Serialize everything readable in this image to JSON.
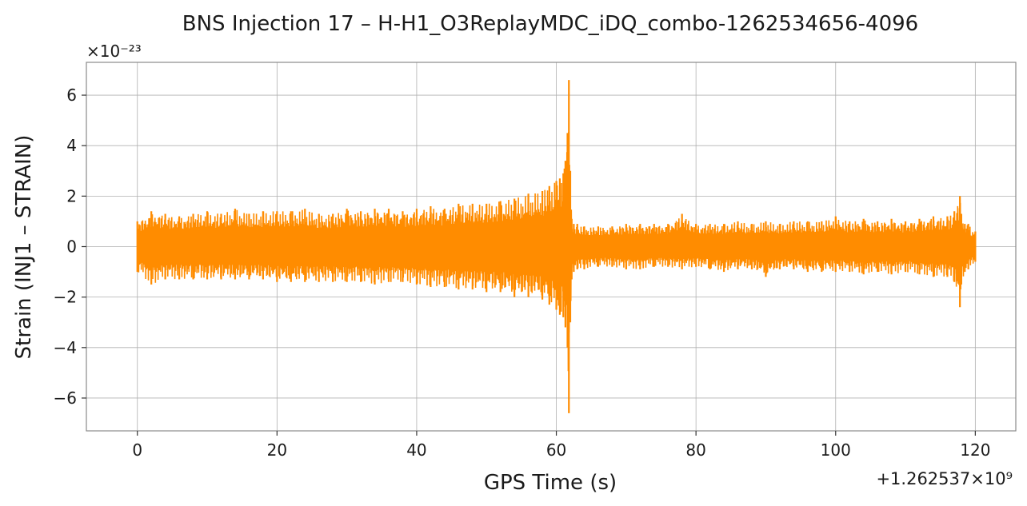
{
  "chart_data": {
    "type": "line",
    "title": "BNS Injection 17 – H-H1_O3ReplayMDC_iDQ_combo-1262534656-4096",
    "xlabel": "GPS Time (s)",
    "ylabel": "Strain (INJ1 – STRAIN)",
    "y_multiplier": "×10⁻²³",
    "x_offset": "+1.262537×10⁹",
    "xlim": [
      -7.3,
      125.8
    ],
    "ylim": [
      -7.3,
      7.3
    ],
    "x_ticks": [
      0,
      20,
      40,
      60,
      80,
      100,
      120
    ],
    "y_ticks": [
      -6,
      -4,
      -2,
      0,
      2,
      4,
      6
    ],
    "x_tick_labels": [
      "0",
      "20",
      "40",
      "60",
      "80",
      "100",
      "120"
    ],
    "y_tick_labels": [
      "−6",
      "−4",
      "−2",
      "0",
      "2",
      "4",
      "6"
    ],
    "grid": true,
    "legend": "none",
    "series_color": "#ff8c00",
    "series": [
      {
        "x": [
          0,
          2,
          4,
          6,
          8,
          10,
          12,
          14,
          16,
          18,
          20,
          22,
          24,
          26,
          28,
          30,
          32,
          34,
          36,
          38,
          40,
          42,
          44,
          46,
          48,
          50,
          52,
          54,
          56,
          58,
          59,
          60,
          60.5,
          61,
          61.3,
          61.6,
          61.8,
          62,
          62.2,
          62.5,
          63,
          64,
          66,
          68,
          70,
          72,
          74,
          76,
          78,
          80,
          82,
          84,
          86,
          88,
          90,
          92,
          94,
          96,
          98,
          100,
          102,
          104,
          106,
          108,
          110,
          112,
          114,
          116,
          117,
          117.8,
          118,
          118.5,
          119,
          120
        ],
        "upper": [
          1.0,
          1.4,
          1.3,
          1.2,
          1.3,
          1.4,
          1.3,
          1.5,
          1.3,
          1.4,
          1.4,
          1.4,
          1.5,
          1.3,
          1.3,
          1.5,
          1.4,
          1.5,
          1.5,
          1.4,
          1.5,
          1.6,
          1.5,
          1.7,
          1.7,
          1.7,
          1.8,
          1.9,
          2.1,
          2.2,
          2.4,
          2.6,
          2.7,
          2.9,
          3.4,
          4.5,
          6.6,
          3.0,
          1.1,
          0.9,
          0.9,
          0.8,
          0.8,
          0.8,
          0.9,
          0.9,
          0.9,
          0.9,
          1.3,
          0.9,
          0.9,
          0.9,
          1.0,
          0.9,
          1.0,
          0.9,
          1.0,
          1.0,
          1.0,
          1.2,
          1.0,
          1.1,
          1.0,
          1.1,
          1.0,
          1.1,
          1.2,
          1.2,
          1.4,
          2.0,
          1.3,
          0.9,
          0.9,
          0.6
        ],
        "lower": [
          -1.0,
          -1.5,
          -1.3,
          -1.3,
          -1.3,
          -1.3,
          -1.3,
          -1.3,
          -1.3,
          -1.3,
          -1.4,
          -1.4,
          -1.4,
          -1.4,
          -1.4,
          -1.4,
          -1.4,
          -1.5,
          -1.4,
          -1.4,
          -1.5,
          -1.6,
          -1.6,
          -1.7,
          -1.7,
          -1.8,
          -1.8,
          -2.0,
          -2.0,
          -2.1,
          -2.3,
          -2.5,
          -2.7,
          -2.8,
          -3.2,
          -4.0,
          -6.6,
          -3.0,
          -1.3,
          -1.0,
          -0.9,
          -0.9,
          -0.8,
          -0.8,
          -0.9,
          -0.9,
          -0.8,
          -0.8,
          -0.9,
          -0.8,
          -0.9,
          -1.0,
          -0.9,
          -0.9,
          -1.2,
          -0.9,
          -0.9,
          -1.0,
          -1.0,
          -1.0,
          -1.0,
          -1.1,
          -1.0,
          -1.1,
          -1.0,
          -1.1,
          -1.2,
          -1.2,
          -1.4,
          -2.4,
          -1.5,
          -1.0,
          -0.9,
          -0.6
        ]
      }
    ]
  }
}
